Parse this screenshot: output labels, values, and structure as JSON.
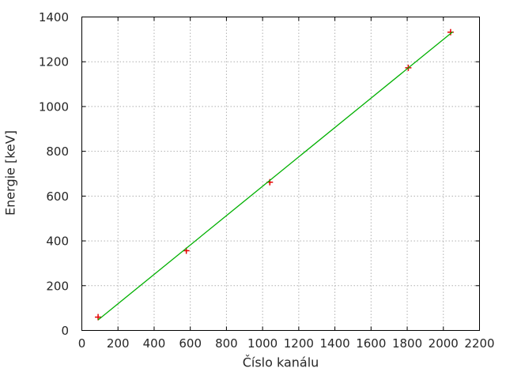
{
  "figure": {
    "background": "#ffffff",
    "border_color": "#000000",
    "grid_color": "#b0b0b0",
    "text_color": "#262626"
  },
  "chart_data": {
    "type": "scatter",
    "title": "",
    "xlabel": "Číslo kanálu",
    "ylabel": "Energie [keV]",
    "xlim": [
      0,
      2200
    ],
    "ylim": [
      0,
      1400
    ],
    "xticks": [
      0,
      200,
      400,
      600,
      800,
      1000,
      1200,
      1400,
      1600,
      1800,
      2000,
      2200
    ],
    "yticks": [
      0,
      200,
      400,
      600,
      800,
      1000,
      1200,
      1400
    ],
    "grid": "dotted",
    "legend": "none",
    "series": [
      {
        "name": "calibration-points",
        "type": "scatter",
        "marker": "plus",
        "color": "#e60000",
        "x": [
          90,
          578,
          1040,
          1806,
          2040
        ],
        "y": [
          59.5,
          356,
          662,
          1173,
          1332
        ]
      },
      {
        "name": "linear-fit",
        "type": "line",
        "color": "#00b000",
        "x": [
          90,
          2052
        ],
        "y": [
          47,
          1334
        ]
      }
    ]
  }
}
